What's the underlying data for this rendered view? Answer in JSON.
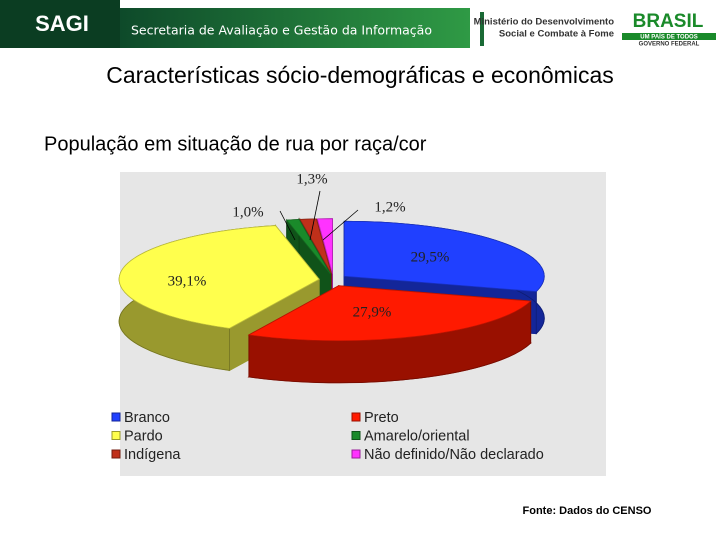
{
  "header": {
    "logo": "SAGI",
    "department": "Secretaria de Avaliação e Gestão da Informação",
    "ministry": [
      "Ministério do Desenvolvimento",
      "Social e Combate à Fome"
    ],
    "brand": "BRASIL",
    "slogan": "UM PAÍS DE TODOS",
    "government": "GOVERNO FEDERAL"
  },
  "slide_title": "Características sócio-demográficas e econômicas",
  "chart_data": {
    "type": "pie",
    "title": "População em situação de rua por raça/cor",
    "categories": [
      "Branco",
      "Preto",
      "Pardo",
      "Amarelo/oriental",
      "Indígena",
      "Não definido/Não declarado"
    ],
    "values": [
      29.5,
      27.9,
      39.1,
      1.0,
      1.3,
      1.2
    ],
    "value_labels": [
      "29,5%",
      "27,9%",
      "39,1%",
      "1,0%",
      "1,3%",
      "1,2%"
    ],
    "colors": [
      "#2040ff",
      "#ff1a00",
      "#ffff4d",
      "#1a8a2a",
      "#c0301a",
      "#ff33ff"
    ]
  },
  "source": "Fonte: Dados do CENSO"
}
